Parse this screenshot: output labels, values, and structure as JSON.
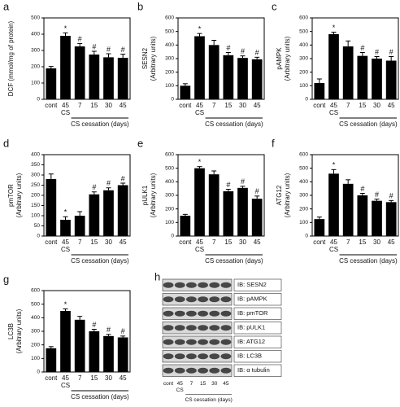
{
  "chart_data": [
    {
      "type": "bar",
      "panel_label": "a",
      "ylabel": [
        "DCF (mmol/mg of protein)"
      ],
      "categories": [
        "cont",
        "45",
        "7",
        "15",
        "30",
        "45"
      ],
      "category_sublabel": "CS",
      "group_label": "CS cessation (days)",
      "values": [
        190,
        390,
        325,
        275,
        258,
        255
      ],
      "errors": [
        12,
        18,
        18,
        20,
        22,
        22
      ],
      "annotations": [
        null,
        "*",
        "#",
        "#",
        "#",
        "#"
      ],
      "color": "#000000",
      "ylim": [
        0,
        500
      ],
      "yticks": [
        0,
        100,
        200,
        300,
        400,
        500
      ]
    },
    {
      "type": "bar",
      "panel_label": "b",
      "ylabel": [
        "SESN2",
        "(Arbitrary units)"
      ],
      "categories": [
        "cont",
        "45",
        "7",
        "15",
        "30",
        "45"
      ],
      "category_sublabel": "CS",
      "group_label": "CS cessation (days)",
      "values": [
        100,
        465,
        400,
        325,
        305,
        295
      ],
      "errors": [
        15,
        20,
        35,
        20,
        15,
        15
      ],
      "annotations": [
        null,
        "*",
        null,
        "#",
        "#",
        "#"
      ],
      "color": "#000000",
      "ylim": [
        0,
        600
      ],
      "yticks": [
        0,
        100,
        200,
        300,
        400,
        500,
        600
      ]
    },
    {
      "type": "bar",
      "panel_label": "c",
      "ylabel": [
        "pAMPK",
        "(Arbitrary units)"
      ],
      "categories": [
        "cont",
        "45",
        "7",
        "15",
        "30",
        "45"
      ],
      "category_sublabel": "CS",
      "group_label": "CS cessation (days)",
      "values": [
        120,
        480,
        390,
        320,
        300,
        285
      ],
      "errors": [
        30,
        15,
        40,
        25,
        15,
        30
      ],
      "annotations": [
        null,
        "*",
        null,
        "#",
        "#",
        "#"
      ],
      "color": "#000000",
      "ylim": [
        0,
        600
      ],
      "yticks": [
        0,
        100,
        200,
        300,
        400,
        500,
        600
      ]
    },
    {
      "type": "bar",
      "panel_label": "d",
      "ylabel": [
        "pmTOR",
        "(Arbitrary units)"
      ],
      "categories": [
        "cont",
        "45",
        "7",
        "15",
        "30",
        "45"
      ],
      "category_sublabel": "CS",
      "group_label": "CS cessation (days)",
      "values": [
        280,
        80,
        100,
        205,
        225,
        250
      ],
      "errors": [
        25,
        15,
        20,
        12,
        12,
        10
      ],
      "annotations": [
        null,
        "*",
        null,
        "#",
        "#",
        "#"
      ],
      "color": "#000000",
      "ylim": [
        0,
        400
      ],
      "yticks": [
        0,
        50,
        100,
        150,
        200,
        250,
        300,
        350,
        400
      ]
    },
    {
      "type": "bar",
      "panel_label": "e",
      "ylabel": [
        "pULK1",
        "(Arbitrary units)"
      ],
      "categories": [
        "cont",
        "45",
        "7",
        "15",
        "30",
        "45"
      ],
      "category_sublabel": "CS",
      "group_label": "CS cessation (days)",
      "values": [
        150,
        500,
        455,
        330,
        355,
        275
      ],
      "errors": [
        10,
        12,
        25,
        15,
        12,
        20
      ],
      "annotations": [
        null,
        "*",
        null,
        "#",
        "#",
        "#"
      ],
      "color": "#000000",
      "ylim": [
        0,
        600
      ],
      "yticks": [
        0,
        100,
        200,
        300,
        400,
        500,
        600
      ]
    },
    {
      "type": "bar",
      "panel_label": "f",
      "ylabel": [
        "ATG12",
        "(Arbitrary units)"
      ],
      "categories": [
        "cont",
        "45",
        "7",
        "15",
        "30",
        "45"
      ],
      "category_sublabel": "CS",
      "group_label": "CS cessation (days)",
      "values": [
        125,
        460,
        385,
        300,
        260,
        250
      ],
      "errors": [
        15,
        30,
        30,
        15,
        12,
        12
      ],
      "annotations": [
        null,
        "*",
        null,
        "#",
        "#",
        "#"
      ],
      "color": "#000000",
      "ylim": [
        0,
        600
      ],
      "yticks": [
        0,
        100,
        200,
        300,
        400,
        500,
        600
      ]
    },
    {
      "type": "bar",
      "panel_label": "g",
      "ylabel": [
        "LC3B",
        "(Arbitrary units)"
      ],
      "categories": [
        "cont",
        "45",
        "7",
        "15",
        "30",
        "45"
      ],
      "category_sublabel": "CS",
      "group_label": "CS cessation (days)",
      "values": [
        175,
        450,
        385,
        300,
        265,
        255
      ],
      "errors": [
        12,
        15,
        25,
        15,
        12,
        10
      ],
      "annotations": [
        null,
        "*",
        null,
        "#",
        "#",
        "#"
      ],
      "color": "#000000",
      "ylim": [
        0,
        600
      ],
      "yticks": [
        0,
        100,
        200,
        300,
        400,
        500,
        600
      ]
    }
  ],
  "blot": {
    "panel_label": "h",
    "rows": [
      "IB: SESN2",
      "IB: pAMPK",
      "IB: pmTOR",
      "IB: pULK1",
      "IB: ATG12",
      "IB: LC3B",
      "IB: α tubulin"
    ],
    "lanes": [
      "cont",
      "45",
      "7",
      "15",
      "30",
      "45"
    ],
    "lane_sublabel": "CS",
    "group_label": "CS cessation (days)"
  }
}
